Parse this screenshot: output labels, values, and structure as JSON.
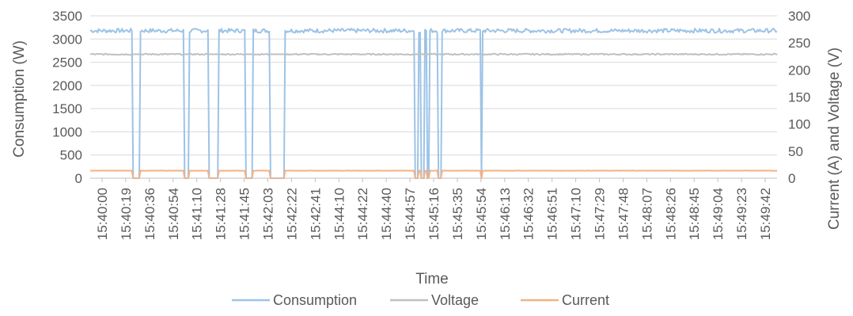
{
  "chart_data": {
    "type": "line",
    "title": "",
    "xlabel": "Time",
    "ylabel_left": "Consumption (W)",
    "ylabel_right": "Current (A) and Voltage (V)",
    "ylim_left": [
      0,
      3500
    ],
    "ylim_right": [
      0,
      300
    ],
    "yticks_left": [
      0,
      500,
      1000,
      1500,
      2000,
      2500,
      3000,
      3500
    ],
    "yticks_right": [
      0,
      50,
      100,
      150,
      200,
      250,
      300
    ],
    "grid": true,
    "legend_position": "bottom",
    "x_tick_labels": [
      "15:40:00",
      "15:40:19",
      "15:40:36",
      "15:40:54",
      "15:41:10",
      "15:41:28",
      "15:41:45",
      "15:42:03",
      "15:42:22",
      "15:42:41",
      "15:44:10",
      "15:44:22",
      "15:44:40",
      "15:44:57",
      "15:45:16",
      "15:45:35",
      "15:45:54",
      "15:46:13",
      "15:46:32",
      "15:46:51",
      "15:47:10",
      "15:47:29",
      "15:47:48",
      "15:48:07",
      "15:48:26",
      "15:48:45",
      "15:49:04",
      "15:49:23",
      "15:49:42"
    ],
    "dropouts": [
      [
        0.062,
        0.072
      ],
      [
        0.136,
        0.144
      ],
      [
        0.172,
        0.186
      ],
      [
        0.226,
        0.237
      ],
      [
        0.262,
        0.283
      ],
      [
        0.472,
        0.477
      ],
      [
        0.482,
        0.486
      ],
      [
        0.49,
        0.494
      ],
      [
        0.507,
        0.511
      ],
      [
        0.568,
        0.571
      ]
    ],
    "series": [
      {
        "name": "Consumption",
        "axis": "left",
        "color": "#9DC3E6",
        "base_value": 3180,
        "jitter": 45,
        "dropout_value": 0
      },
      {
        "name": "Voltage",
        "axis": "right",
        "color": "#C0C0C0",
        "base_value": 229,
        "jitter": 1.2,
        "dropout_value": 229
      },
      {
        "name": "Current",
        "axis": "right",
        "color": "#F4B183",
        "base_value": 13.9,
        "jitter": 0.2,
        "dropout_value": 0
      }
    ]
  }
}
